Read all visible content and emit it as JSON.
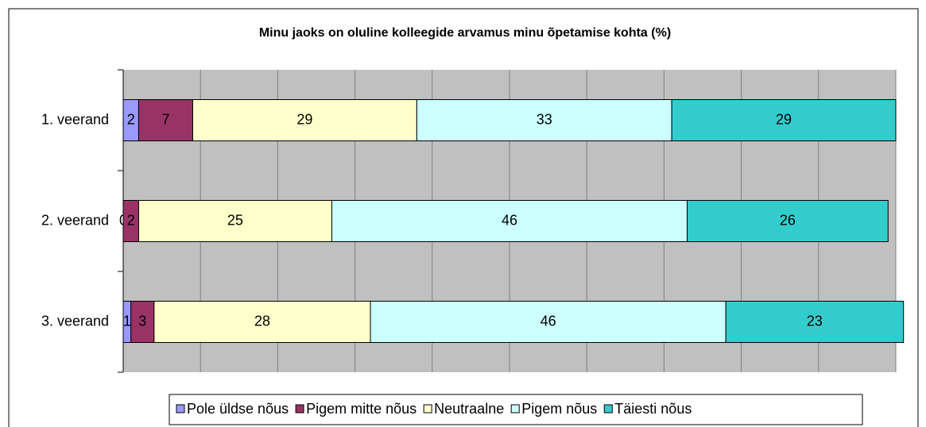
{
  "chart_data": {
    "type": "stacked_barh",
    "title": "Minu jaoks on oluline kolleegide arvamus minu õpetamise kohta (%)",
    "categories": [
      "1. veerand",
      "2. veerand",
      "3. veerand"
    ],
    "series": [
      {
        "name": "Pole üldse nõus",
        "color": "#9999ff",
        "values": [
          2,
          0,
          1
        ]
      },
      {
        "name": "Pigem mitte nõus",
        "color": "#993366",
        "values": [
          7,
          2,
          3
        ]
      },
      {
        "name": "Neutraalne",
        "color": "#ffffcc",
        "values": [
          29,
          25,
          28
        ]
      },
      {
        "name": "Pigem nõus",
        "color": "#ccffff",
        "values": [
          33,
          46,
          46
        ]
      },
      {
        "name": "Täiesti nõus",
        "color": "#33cccc",
        "values": [
          29,
          26,
          23
        ]
      }
    ],
    "xlim": [
      0,
      100
    ],
    "xticks": [
      0,
      10,
      20,
      30,
      40,
      50,
      60,
      70,
      80,
      90,
      100
    ],
    "grid": true,
    "legend": "bottom"
  }
}
